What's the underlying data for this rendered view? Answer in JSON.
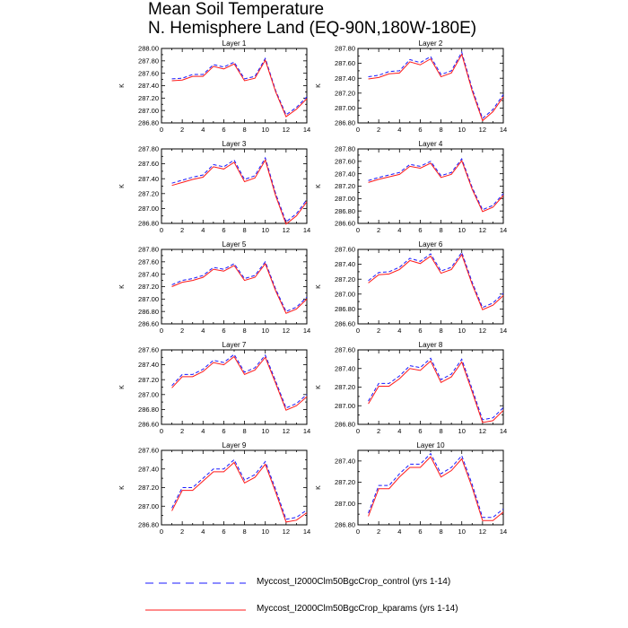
{
  "title": {
    "line1": "Mean Soil Temperature",
    "line2": "N. Hemisphere Land (EQ-90N,180W-180E)"
  },
  "colors": {
    "control": "#1a1aff",
    "kparams": "#ff1a1a",
    "axis": "#000000"
  },
  "legend": {
    "control_label": "Myccost_I2000Clm50BgcCrop_control (yrs 1-14)",
    "kparams_label": "Myccost_I2000Clm50BgcCrop_kparams (yrs 1-14)"
  },
  "chart_data": [
    {
      "type": "line",
      "title": "Layer 1",
      "ylabel": "K",
      "xlim": [
        0,
        14
      ],
      "xticks": [
        0,
        2,
        4,
        6,
        8,
        10,
        12,
        14
      ],
      "ylim": [
        286.8,
        288.0
      ],
      "yticks": [
        286.8,
        287.0,
        287.2,
        287.4,
        287.6,
        287.8,
        288.0
      ],
      "ytick_labels": [
        "286.80",
        "287.00",
        "287.20",
        "287.40",
        "287.60",
        "287.80",
        "288.00"
      ],
      "x": [
        1,
        2,
        3,
        4,
        5,
        6,
        7,
        8,
        9,
        10,
        11,
        12,
        13,
        14
      ],
      "series": [
        {
          "key": "control",
          "values": [
            287.51,
            287.52,
            287.58,
            287.58,
            287.74,
            287.7,
            287.78,
            287.51,
            287.55,
            287.84,
            287.32,
            286.93,
            287.05,
            287.22
          ]
        },
        {
          "key": "kparams",
          "values": [
            287.48,
            287.49,
            287.55,
            287.55,
            287.71,
            287.67,
            287.75,
            287.48,
            287.52,
            287.81,
            287.3,
            286.9,
            287.02,
            287.19
          ]
        }
      ]
    },
    {
      "type": "line",
      "title": "Layer 2",
      "ylabel": "K",
      "xlim": [
        0,
        14
      ],
      "xticks": [
        0,
        2,
        4,
        6,
        8,
        10,
        12,
        14
      ],
      "ylim": [
        286.8,
        287.8
      ],
      "yticks": [
        286.8,
        287.0,
        287.2,
        287.4,
        287.6,
        287.8
      ],
      "ytick_labels": [
        "286.80",
        "287.00",
        "287.20",
        "287.40",
        "287.60",
        "287.80"
      ],
      "x": [
        1,
        2,
        3,
        4,
        5,
        6,
        7,
        8,
        9,
        10,
        11,
        12,
        13,
        14
      ],
      "series": [
        {
          "key": "control",
          "values": [
            287.42,
            287.44,
            287.49,
            287.5,
            287.65,
            287.61,
            287.69,
            287.45,
            287.5,
            287.75,
            287.26,
            286.86,
            286.98,
            287.18
          ]
        },
        {
          "key": "kparams",
          "values": [
            287.39,
            287.41,
            287.46,
            287.47,
            287.62,
            287.58,
            287.66,
            287.42,
            287.47,
            287.72,
            287.23,
            286.83,
            286.95,
            287.15
          ]
        }
      ]
    },
    {
      "type": "line",
      "title": "Layer 3",
      "ylabel": "K",
      "xlim": [
        0,
        14
      ],
      "xticks": [
        0,
        2,
        4,
        6,
        8,
        10,
        12,
        14
      ],
      "ylim": [
        286.8,
        287.8
      ],
      "yticks": [
        286.8,
        287.0,
        287.2,
        287.4,
        287.6,
        287.8
      ],
      "ytick_labels": [
        "286.80",
        "287.00",
        "287.20",
        "287.40",
        "287.60",
        "287.80"
      ],
      "x": [
        1,
        2,
        3,
        4,
        5,
        6,
        7,
        8,
        9,
        10,
        11,
        12,
        13,
        14
      ],
      "series": [
        {
          "key": "control",
          "values": [
            287.34,
            287.38,
            287.42,
            287.45,
            287.59,
            287.56,
            287.65,
            287.39,
            287.44,
            287.68,
            287.2,
            286.82,
            286.93,
            287.12
          ]
        },
        {
          "key": "kparams",
          "values": [
            287.31,
            287.35,
            287.39,
            287.42,
            287.56,
            287.53,
            287.62,
            287.36,
            287.41,
            287.65,
            287.17,
            286.79,
            286.9,
            287.09
          ]
        }
      ]
    },
    {
      "type": "line",
      "title": "Layer 4",
      "ylabel": "K",
      "xlim": [
        0,
        14
      ],
      "xticks": [
        0,
        2,
        4,
        6,
        8,
        10,
        12,
        14
      ],
      "ylim": [
        286.6,
        287.8
      ],
      "yticks": [
        286.6,
        286.8,
        287.0,
        287.2,
        287.4,
        287.6,
        287.8
      ],
      "ytick_labels": [
        "286.60",
        "286.80",
        "287.00",
        "287.20",
        "287.40",
        "287.60",
        "287.80"
      ],
      "x": [
        1,
        2,
        3,
        4,
        5,
        6,
        7,
        8,
        9,
        10,
        11,
        12,
        13,
        14
      ],
      "series": [
        {
          "key": "control",
          "values": [
            287.29,
            287.34,
            287.38,
            287.42,
            287.55,
            287.52,
            287.6,
            287.37,
            287.42,
            287.64,
            287.18,
            286.82,
            286.89,
            287.08
          ]
        },
        {
          "key": "kparams",
          "values": [
            287.26,
            287.31,
            287.35,
            287.39,
            287.52,
            287.49,
            287.57,
            287.34,
            287.39,
            287.61,
            287.15,
            286.79,
            286.86,
            287.05
          ]
        }
      ]
    },
    {
      "type": "line",
      "title": "Layer 5",
      "ylabel": "K",
      "xlim": [
        0,
        14
      ],
      "xticks": [
        0,
        2,
        4,
        6,
        8,
        10,
        12,
        14
      ],
      "ylim": [
        286.6,
        287.8
      ],
      "yticks": [
        286.6,
        286.8,
        287.0,
        287.2,
        287.4,
        287.6,
        287.8
      ],
      "ytick_labels": [
        "286.60",
        "286.80",
        "287.00",
        "287.20",
        "287.40",
        "287.60",
        "287.80"
      ],
      "x": [
        1,
        2,
        3,
        4,
        5,
        6,
        7,
        8,
        9,
        10,
        11,
        12,
        13,
        14
      ],
      "series": [
        {
          "key": "control",
          "values": [
            287.23,
            287.3,
            287.33,
            287.38,
            287.51,
            287.48,
            287.57,
            287.33,
            287.38,
            287.6,
            287.16,
            286.8,
            286.87,
            287.03
          ]
        },
        {
          "key": "kparams",
          "values": [
            287.2,
            287.27,
            287.3,
            287.35,
            287.48,
            287.45,
            287.54,
            287.3,
            287.35,
            287.57,
            287.13,
            286.77,
            286.84,
            287.0
          ]
        }
      ]
    },
    {
      "type": "line",
      "title": "Layer 6",
      "ylabel": "K",
      "xlim": [
        0,
        14
      ],
      "xticks": [
        0,
        2,
        4,
        6,
        8,
        10,
        12,
        14
      ],
      "ylim": [
        286.6,
        287.6
      ],
      "yticks": [
        286.6,
        286.8,
        287.0,
        287.2,
        287.4,
        287.6
      ],
      "ytick_labels": [
        "286.60",
        "286.80",
        "287.00",
        "287.20",
        "287.40",
        "287.60"
      ],
      "x": [
        1,
        2,
        3,
        4,
        5,
        6,
        7,
        8,
        9,
        10,
        11,
        12,
        13,
        14
      ],
      "series": [
        {
          "key": "control",
          "values": [
            287.18,
            287.29,
            287.3,
            287.36,
            287.48,
            287.44,
            287.54,
            287.31,
            287.36,
            287.56,
            287.16,
            286.82,
            286.88,
            287.01
          ]
        },
        {
          "key": "kparams",
          "values": [
            287.15,
            287.26,
            287.27,
            287.33,
            287.45,
            287.41,
            287.51,
            287.28,
            287.33,
            287.53,
            287.13,
            286.79,
            286.85,
            286.98
          ]
        }
      ]
    },
    {
      "type": "line",
      "title": "Layer 7",
      "ylabel": "K",
      "xlim": [
        0,
        14
      ],
      "xticks": [
        0,
        2,
        4,
        6,
        8,
        10,
        12,
        14
      ],
      "ylim": [
        286.6,
        287.6
      ],
      "yticks": [
        286.6,
        286.8,
        287.0,
        287.2,
        287.4,
        287.6
      ],
      "ytick_labels": [
        "286.60",
        "286.80",
        "287.00",
        "287.20",
        "287.40",
        "287.60"
      ],
      "x": [
        1,
        2,
        3,
        4,
        5,
        6,
        7,
        8,
        9,
        10,
        11,
        12,
        13,
        14
      ],
      "series": [
        {
          "key": "control",
          "values": [
            287.12,
            287.27,
            287.27,
            287.34,
            287.46,
            287.43,
            287.54,
            287.3,
            287.36,
            287.53,
            287.18,
            286.82,
            286.88,
            287.0
          ]
        },
        {
          "key": "kparams",
          "values": [
            287.09,
            287.24,
            287.24,
            287.31,
            287.43,
            287.4,
            287.51,
            287.27,
            287.33,
            287.5,
            287.15,
            286.79,
            286.85,
            286.97
          ]
        }
      ]
    },
    {
      "type": "line",
      "title": "Layer 8",
      "ylabel": "K",
      "xlim": [
        0,
        14
      ],
      "xticks": [
        0,
        2,
        4,
        6,
        8,
        10,
        12,
        14
      ],
      "ylim": [
        286.8,
        287.6
      ],
      "yticks": [
        286.8,
        287.0,
        287.2,
        287.4,
        287.6
      ],
      "ytick_labels": [
        "286.80",
        "287.00",
        "287.20",
        "287.40",
        "287.60"
      ],
      "x": [
        1,
        2,
        3,
        4,
        5,
        6,
        7,
        8,
        9,
        10,
        11,
        12,
        13,
        14
      ],
      "series": [
        {
          "key": "control",
          "values": [
            287.05,
            287.24,
            287.24,
            287.32,
            287.43,
            287.41,
            287.51,
            287.28,
            287.34,
            287.5,
            287.18,
            286.85,
            286.87,
            286.98
          ]
        },
        {
          "key": "kparams",
          "values": [
            287.02,
            287.21,
            287.21,
            287.29,
            287.4,
            287.38,
            287.48,
            287.25,
            287.31,
            287.47,
            287.15,
            286.82,
            286.84,
            286.95
          ]
        }
      ]
    },
    {
      "type": "line",
      "title": "Layer 9",
      "ylabel": "K",
      "xlim": [
        0,
        14
      ],
      "xticks": [
        0,
        2,
        4,
        6,
        8,
        10,
        12,
        14
      ],
      "ylim": [
        286.8,
        287.6
      ],
      "yticks": [
        286.8,
        287.0,
        287.2,
        287.4,
        287.6
      ],
      "ytick_labels": [
        "286.80",
        "287.00",
        "287.20",
        "287.40",
        "287.60"
      ],
      "x": [
        1,
        2,
        3,
        4,
        5,
        6,
        7,
        8,
        9,
        10,
        11,
        12,
        13,
        14
      ],
      "series": [
        {
          "key": "control",
          "values": [
            286.98,
            287.2,
            287.2,
            287.3,
            287.4,
            287.4,
            287.5,
            287.28,
            287.34,
            287.48,
            287.18,
            286.86,
            286.88,
            286.96
          ]
        },
        {
          "key": "kparams",
          "values": [
            286.95,
            287.17,
            287.17,
            287.27,
            287.37,
            287.37,
            287.47,
            287.25,
            287.31,
            287.45,
            287.15,
            286.83,
            286.85,
            286.93
          ]
        }
      ]
    },
    {
      "type": "line",
      "title": "Layer 10",
      "ylabel": "K",
      "xlim": [
        0,
        14
      ],
      "xticks": [
        0,
        2,
        4,
        6,
        8,
        10,
        12,
        14
      ],
      "ylim": [
        286.8,
        287.5
      ],
      "yticks": [
        286.8,
        287.0,
        287.2,
        287.4
      ],
      "ytick_labels": [
        "286.80",
        "287.00",
        "287.20",
        "287.40"
      ],
      "x": [
        1,
        2,
        3,
        4,
        5,
        6,
        7,
        8,
        9,
        10,
        11,
        12,
        13,
        14
      ],
      "series": [
        {
          "key": "control",
          "values": [
            286.91,
            287.17,
            287.17,
            287.28,
            287.37,
            287.37,
            287.47,
            287.28,
            287.34,
            287.45,
            287.18,
            286.87,
            286.87,
            286.95
          ]
        },
        {
          "key": "kparams",
          "values": [
            286.88,
            287.14,
            287.14,
            287.25,
            287.34,
            287.34,
            287.44,
            287.25,
            287.31,
            287.42,
            287.15,
            286.84,
            286.84,
            286.92
          ]
        }
      ]
    }
  ]
}
